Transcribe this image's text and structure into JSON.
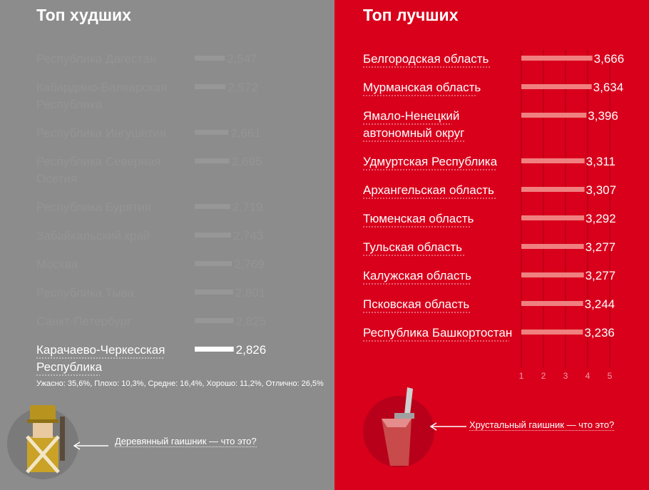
{
  "worst": {
    "title": "Топ худших",
    "summary": "Ужасно: 35,6%, Плохо: 10,3%, Средне: 16,4%, Хорошо: 11,2%, Отлично: 26,5%",
    "link": "Деревянный гаишник — что это?",
    "icon": "wooden-traffic-officer-icon"
  },
  "best": {
    "title": "Топ лучших",
    "link": "Хрустальный гаишник — что это?",
    "icon": "crystal-traffic-officer-icon"
  },
  "colors": {
    "left_bg": "#8c8c8c",
    "right_bg": "#d9001c",
    "bar_right": "#f08080",
    "bar_left_highlight": "#ffffff"
  },
  "chart_data": [
    {
      "type": "bar",
      "orientation": "horizontal",
      "title": "Топ худших",
      "categories": [
        "Республика Дагестан",
        "Кабардино-Балкарская Республика",
        "Республика Ингушетия",
        "Республика Северная Осетия",
        "Республика Бурятия",
        "Забайкальский край",
        "Москва",
        "Республика Тыва",
        "Санкт-Петербург",
        "Карачаево-Черкесская Республика"
      ],
      "values": [
        2.547,
        2.572,
        2.661,
        2.695,
        2.719,
        2.743,
        2.769,
        2.801,
        2.825,
        2.826
      ],
      "value_labels": [
        "2,547",
        "2,572",
        "2,661",
        "2,695",
        "2,719",
        "2,743",
        "2,769",
        "2,801",
        "2,825",
        "2,826"
      ],
      "highlighted_index": 9
    },
    {
      "type": "bar",
      "orientation": "horizontal",
      "title": "Топ лучших",
      "categories": [
        "Белгородская область",
        "Мурманская область",
        "Ямало-Ненецкий автономный округ",
        "Удмуртская Республика",
        "Архангельская область",
        "Тюменская область",
        "Тульская область",
        "Калужская область",
        "Псковская область",
        "Республика Башкортостан"
      ],
      "values": [
        3.666,
        3.634,
        3.396,
        3.311,
        3.307,
        3.292,
        3.277,
        3.277,
        3.244,
        3.236
      ],
      "value_labels": [
        "3,666",
        "3,634",
        "3,396",
        "3,311",
        "3,307",
        "3,292",
        "3,277",
        "3,277",
        "3,244",
        "3,236"
      ],
      "xlim": [
        0,
        5
      ],
      "xticks": [
        1,
        2,
        3,
        4,
        5
      ],
      "grid": true
    }
  ]
}
